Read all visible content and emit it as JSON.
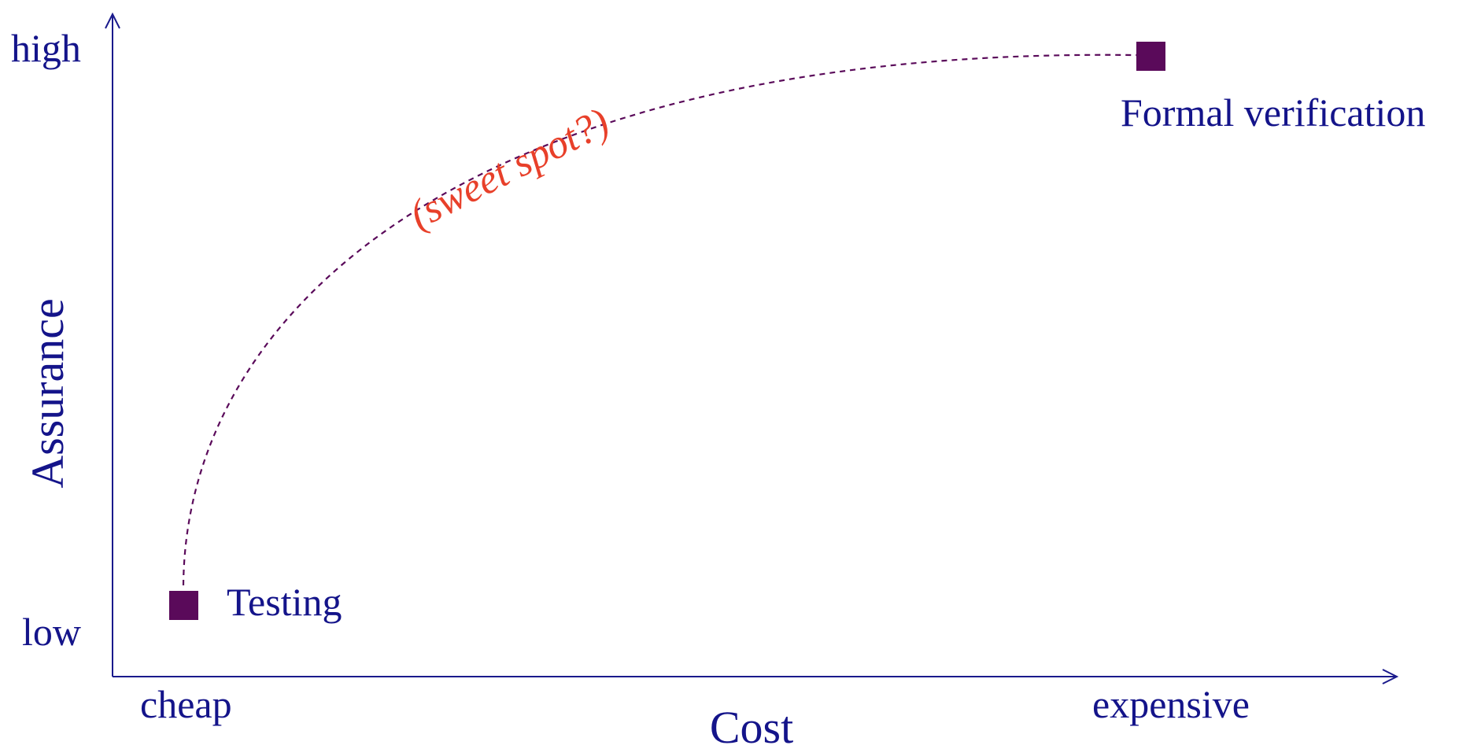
{
  "axes": {
    "x": {
      "title": "Cost",
      "low_label": "cheap",
      "high_label": "expensive"
    },
    "y": {
      "title": "Assurance",
      "low_label": "low",
      "high_label": "high"
    }
  },
  "points": [
    {
      "label": "Testing",
      "cost": 0.05,
      "assurance": 0.08
    },
    {
      "label": "Formal verification",
      "cost": 0.82,
      "assurance": 0.96
    }
  ],
  "annotation": {
    "text": "(sweet spot?)",
    "color": "#e8402a"
  },
  "colors": {
    "axis": "#1a1a8c",
    "text": "#14148a",
    "marker": "#5a0a5a",
    "curve": "#5a0a5a"
  }
}
